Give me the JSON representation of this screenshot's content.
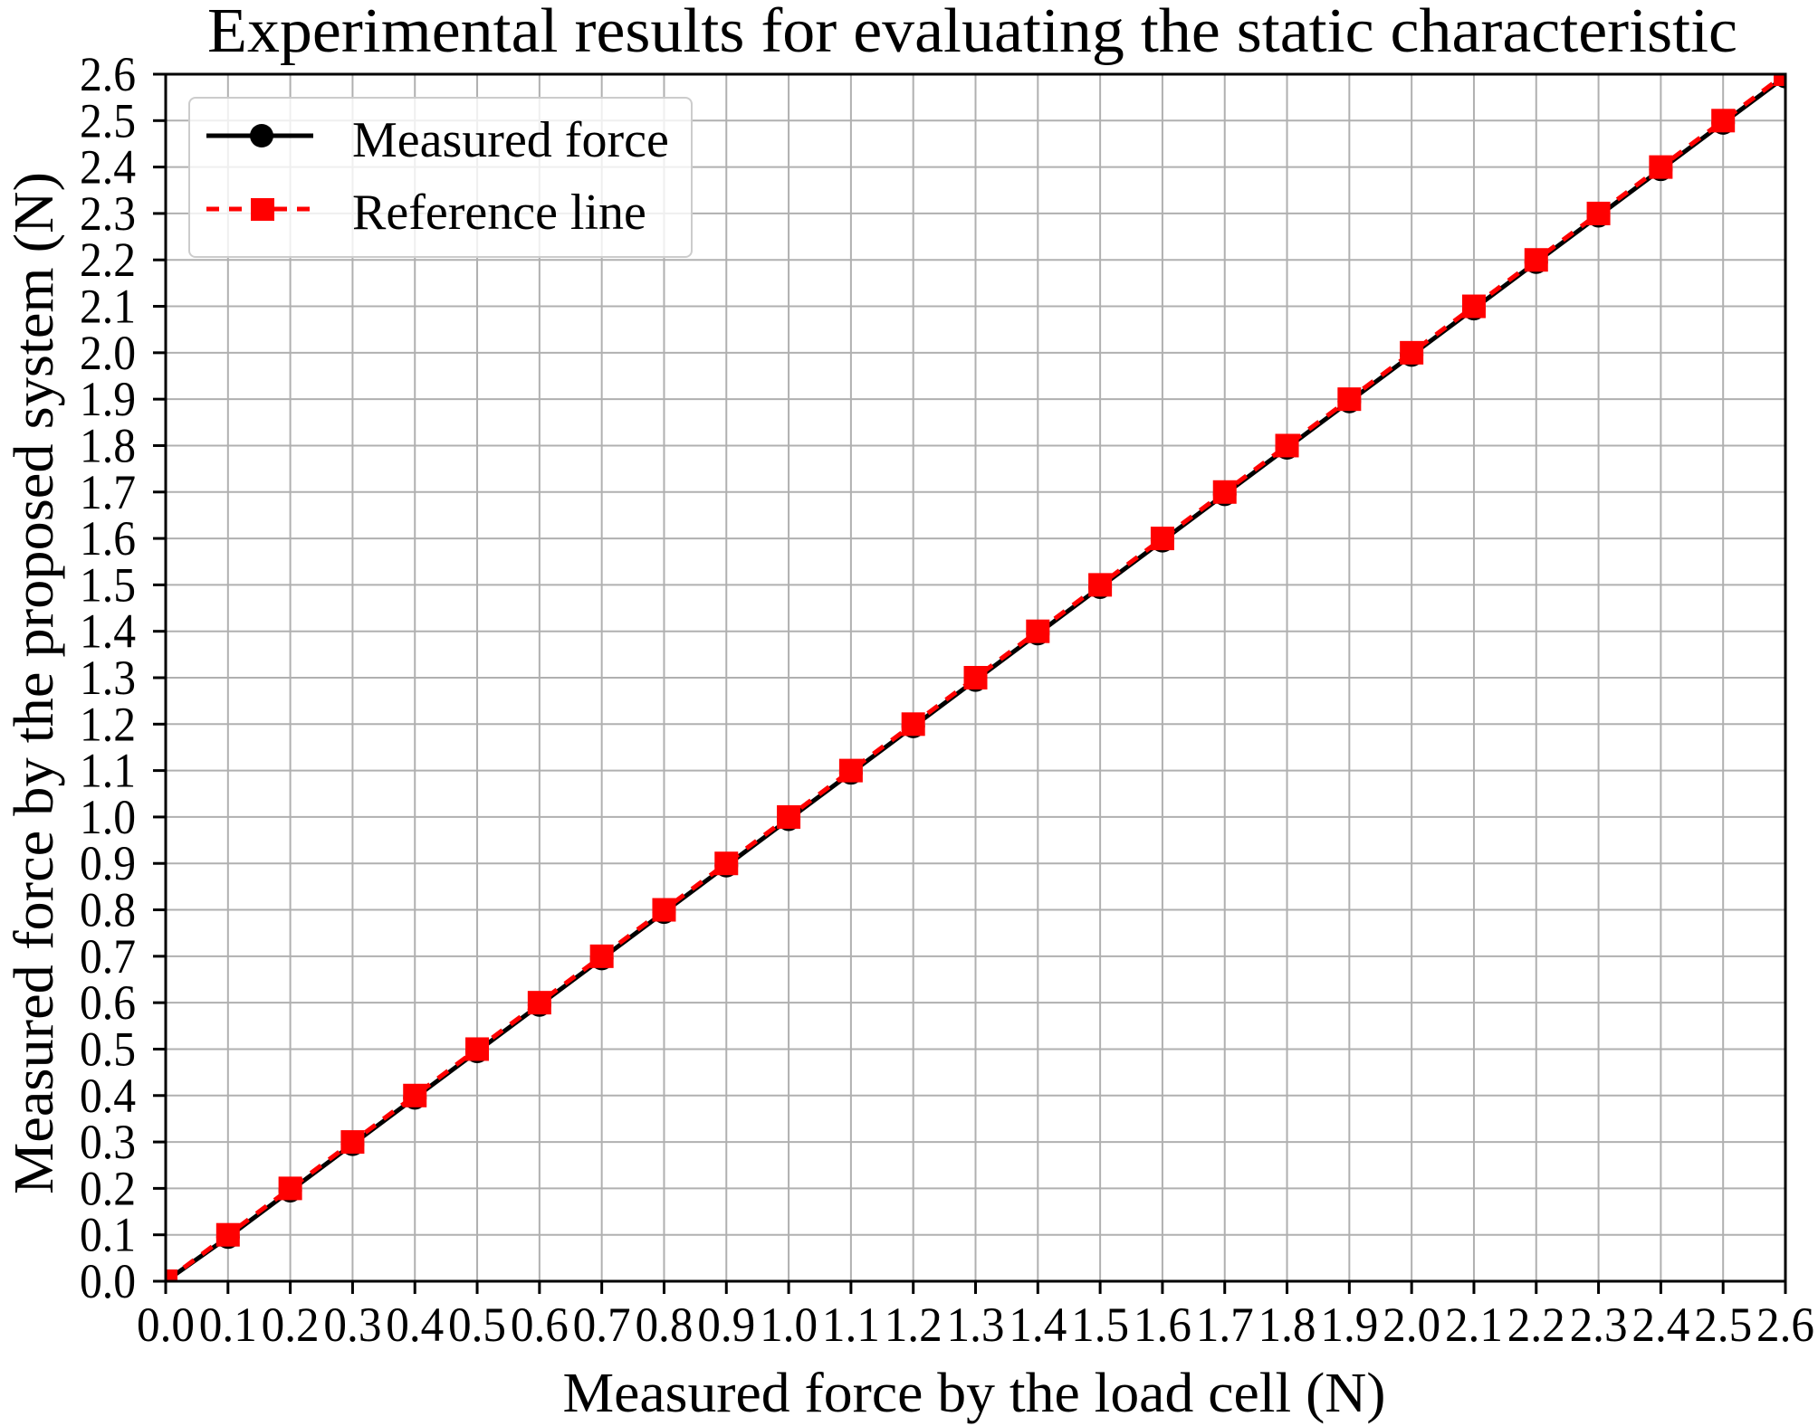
{
  "chart_data": {
    "type": "line",
    "title": "Experimental results for evaluating the static characteristic",
    "xlabel": "Measured force by the load cell (N)",
    "ylabel": "Measured force by the proposed system (N)",
    "xlim": [
      0.0,
      2.6
    ],
    "ylim": [
      0.0,
      2.6
    ],
    "grid": true,
    "legend_position": "upper left",
    "x_ticks": [
      "0.0",
      "0.1",
      "0.2",
      "0.3",
      "0.4",
      "0.5",
      "0.6",
      "0.7",
      "0.8",
      "0.9",
      "1.0",
      "1.1",
      "1.2",
      "1.3",
      "1.4",
      "1.5",
      "1.6",
      "1.7",
      "1.8",
      "1.9",
      "2.0",
      "2.1",
      "2.2",
      "2.3",
      "2.4",
      "2.5",
      "2.6"
    ],
    "y_ticks": [
      "0.0",
      "0.1",
      "0.2",
      "0.3",
      "0.4",
      "0.5",
      "0.6",
      "0.7",
      "0.8",
      "0.9",
      "1.0",
      "1.1",
      "1.2",
      "1.3",
      "1.4",
      "1.5",
      "1.6",
      "1.7",
      "1.8",
      "1.9",
      "2.0",
      "2.1",
      "2.2",
      "2.3",
      "2.4",
      "2.5",
      "2.6"
    ],
    "x": [
      0.0,
      0.1,
      0.2,
      0.3,
      0.4,
      0.5,
      0.6,
      0.7,
      0.8,
      0.9,
      1.0,
      1.1,
      1.2,
      1.3,
      1.4,
      1.5,
      1.6,
      1.7,
      1.8,
      1.9,
      2.0,
      2.1,
      2.2,
      2.3,
      2.4,
      2.5,
      2.6
    ],
    "series": [
      {
        "name": "Measured force",
        "color": "#000000",
        "linestyle": "solid",
        "marker": "circle",
        "values": [
          0.0,
          0.095,
          0.195,
          0.295,
          0.395,
          0.495,
          0.595,
          0.695,
          0.795,
          0.895,
          0.995,
          1.095,
          1.195,
          1.295,
          1.395,
          1.495,
          1.595,
          1.695,
          1.795,
          1.895,
          1.995,
          2.095,
          2.195,
          2.295,
          2.395,
          2.495,
          2.595
        ]
      },
      {
        "name": "Reference line",
        "color": "#ff0000",
        "linestyle": "dashed",
        "marker": "square",
        "values": [
          0.0,
          0.1,
          0.2,
          0.3,
          0.4,
          0.5,
          0.6,
          0.7,
          0.8,
          0.9,
          1.0,
          1.1,
          1.2,
          1.3,
          1.4,
          1.5,
          1.6,
          1.7,
          1.8,
          1.9,
          2.0,
          2.1,
          2.2,
          2.3,
          2.4,
          2.5,
          2.6
        ]
      }
    ]
  },
  "legend": {
    "items": [
      {
        "label": "Measured force",
        "icon": "black-line-circle-marker-icon"
      },
      {
        "label": "Reference line",
        "icon": "red-dashed-line-square-marker-icon"
      }
    ]
  },
  "colors": {
    "grid": "#b0b0b0",
    "axes": "#000000",
    "measured": "#000000",
    "reference": "#ff0000"
  }
}
